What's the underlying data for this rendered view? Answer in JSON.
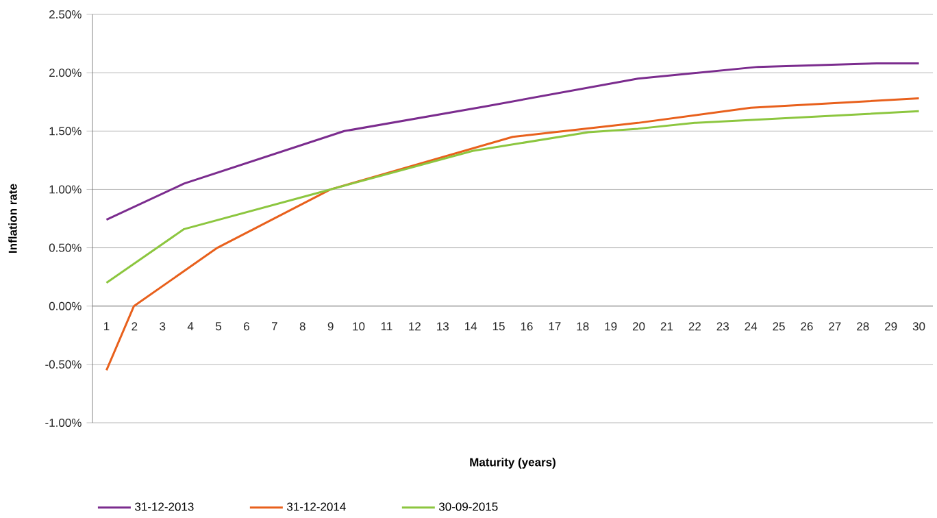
{
  "chart_data": {
    "type": "line",
    "xlabel": "Maturity (years)",
    "ylabel": "Inflation rate",
    "xlim": [
      0.5,
      30.5
    ],
    "xticks": [
      1,
      2,
      3,
      4,
      5,
      6,
      7,
      8,
      9,
      10,
      11,
      12,
      13,
      14,
      15,
      16,
      17,
      18,
      19,
      20,
      21,
      22,
      23,
      24,
      25,
      26,
      27,
      28,
      29,
      30
    ],
    "ylim": [
      -1.0,
      2.5
    ],
    "yticks": [
      {
        "value": -1.0,
        "label": "-1.00%"
      },
      {
        "value": -0.5,
        "label": "-0.50%"
      },
      {
        "value": 0,
        "label": "0.00%"
      },
      {
        "value": 0.5,
        "label": "0.50%"
      },
      {
        "value": 1.0,
        "label": "1.00%"
      },
      {
        "value": 1.5,
        "label": "1.50%"
      },
      {
        "value": 2.0,
        "label": "2.00%"
      },
      {
        "value": 2.5,
        "label": "2.50%"
      }
    ],
    "grid": "y",
    "legend": "bottom",
    "marker": "none",
    "line_style": "solid",
    "series": [
      {
        "name": "31-12-2013",
        "color": "#7b2c8e",
        "x": [
          1,
          3.77,
          9.49,
          14.5,
          19.97,
          24.25,
          28.5,
          30
        ],
        "values": [
          0.74,
          1.05,
          1.5,
          1.71,
          1.95,
          2.05,
          2.08,
          2.08
        ]
      },
      {
        "name": "31-12-2014",
        "color": "#e8601c",
        "x": [
          1,
          1.98,
          4.96,
          9,
          15.5,
          19.97,
          24,
          30
        ],
        "values": [
          -0.55,
          0.0,
          0.5,
          1.0,
          1.45,
          1.57,
          1.7,
          1.78
        ]
      },
      {
        "name": "30-09-2015",
        "color": "#8cc63f",
        "x": [
          1,
          3.77,
          9,
          14.07,
          18.2,
          19.97,
          22,
          30
        ],
        "values": [
          0.2,
          0.66,
          1.0,
          1.33,
          1.49,
          1.52,
          1.57,
          1.67
        ]
      }
    ]
  }
}
